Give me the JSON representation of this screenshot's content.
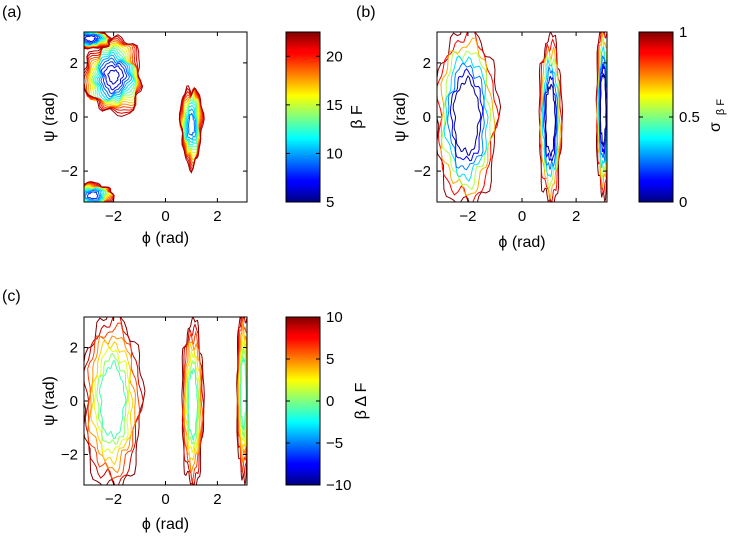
{
  "figure": {
    "panels": [
      {
        "id": "a",
        "label": "(a)"
      },
      {
        "id": "b",
        "label": "(b)"
      },
      {
        "id": "c",
        "label": "(c)"
      }
    ]
  },
  "chart_data": [
    {
      "panel": "(a)",
      "type": "heatmap",
      "subtype": "contour",
      "xlabel": "ϕ (rad)",
      "ylabel": "ψ (rad)",
      "xlim": [
        -3.1416,
        3.1416
      ],
      "ylim": [
        -3.1416,
        3.1416
      ],
      "xticks": [
        -2,
        0,
        2
      ],
      "xtick_labels": [
        "−2",
        "0",
        "2"
      ],
      "yticks": [
        -2,
        0,
        2
      ],
      "ytick_labels": [
        "−2",
        "0",
        "2"
      ],
      "colorbar": {
        "label": "β F",
        "min": 5,
        "max": 22.5,
        "ticks": [
          5,
          10,
          15,
          20
        ],
        "tick_labels": [
          "5",
          "10",
          "15",
          "20"
        ],
        "colormap": "jet"
      },
      "regions": [
        {
          "phi": -2.0,
          "psi": 1.5,
          "min_value": 5.5,
          "sx": 0.85,
          "sy": 1.4
        },
        {
          "phi": 1.0,
          "psi": -0.3,
          "min_value": 8.0,
          "sx": 0.35,
          "sy": 1.6
        },
        {
          "phi": -2.8,
          "psi": -2.9,
          "min_value": 7.0,
          "sx": 0.6,
          "sy": 0.5
        },
        {
          "phi": -2.9,
          "psi": 2.9,
          "min_value": 6.0,
          "sx": 0.6,
          "sy": 0.4
        }
      ],
      "contour_levels": [
        6,
        7,
        8,
        9,
        10,
        11,
        12,
        13,
        14,
        15,
        16,
        17,
        18,
        19,
        20,
        21,
        22
      ],
      "empty_bands_phi": [
        [
          -0.7,
          0.4
        ],
        [
          1.7,
          3.1416
        ]
      ]
    },
    {
      "panel": "(b)",
      "type": "heatmap",
      "subtype": "contour",
      "xlabel": "ϕ (rad)",
      "ylabel": "ψ (rad)",
      "xlim": [
        -3.1416,
        3.1416
      ],
      "ylim": [
        -3.1416,
        3.1416
      ],
      "xticks": [
        -2,
        0,
        2
      ],
      "xtick_labels": [
        "−2",
        "0",
        "2"
      ],
      "yticks": [
        -2,
        0,
        2
      ],
      "ytick_labels": [
        "−2",
        "0",
        "2"
      ],
      "colorbar": {
        "label": "σ",
        "label_sub": "β F",
        "min": 0,
        "max": 1,
        "ticks": [
          0,
          0.5,
          1
        ],
        "tick_labels": [
          "0",
          "0.5",
          "1"
        ],
        "colormap": "jet"
      },
      "contour_levels": [
        0.1,
        0.2,
        0.3,
        0.4,
        0.5,
        0.6,
        0.7,
        0.8,
        0.9
      ],
      "note_values": "uncertainty low (~0.1) inside sampled regions, rising toward 1 at region edges"
    },
    {
      "panel": "(c)",
      "type": "heatmap",
      "subtype": "contour",
      "xlabel": "ϕ (rad)",
      "ylabel": "ψ (rad)",
      "xlim": [
        -3.1416,
        3.1416
      ],
      "ylim": [
        -3.1416,
        3.1416
      ],
      "xticks": [
        -2,
        0,
        2
      ],
      "xtick_labels": [
        "−2",
        "0",
        "2"
      ],
      "yticks": [
        -2,
        0,
        2
      ],
      "ytick_labels": [
        "−2",
        "0",
        "2"
      ],
      "colorbar": {
        "label": "β Δ F",
        "min": -10,
        "max": 10,
        "ticks": [
          -10,
          -5,
          0,
          5,
          10
        ],
        "tick_labels": [
          "−10",
          "−5",
          "0",
          "5",
          "10"
        ],
        "colormap": "jet"
      },
      "contour_levels": [
        -6,
        -4,
        -2,
        0,
        2,
        4,
        6,
        8,
        10
      ],
      "note_values": "mostly 0 to 5 inside regions, approaching 10 at region edges"
    }
  ]
}
